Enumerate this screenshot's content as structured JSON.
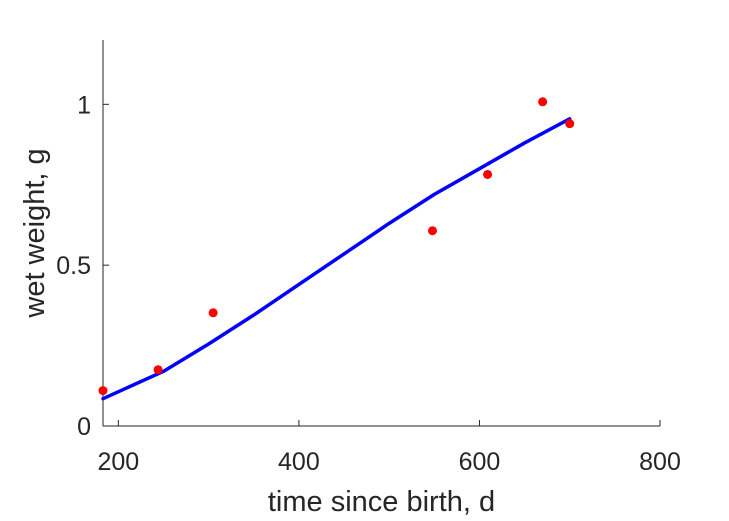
{
  "chart_data": {
    "type": "scatter",
    "title": "",
    "xlabel": "time since birth, d",
    "ylabel": "wet weight, g",
    "xlim": [
      183,
      800
    ],
    "ylim": [
      0,
      1.2
    ],
    "xticks": [
      200,
      400,
      600,
      800
    ],
    "yticks": [
      0,
      0.5,
      1
    ],
    "xtick_labels": [
      "200",
      "400",
      "600",
      "800"
    ],
    "ytick_labels": [
      "0",
      "0.5",
      "1"
    ],
    "grid": false,
    "legend": "none",
    "series": [
      {
        "kind": "scatter",
        "color": "#ff0000",
        "x": [
          183,
          244,
          305,
          548,
          609,
          670,
          700
        ],
        "y": [
          0.11,
          0.175,
          0.352,
          0.607,
          0.782,
          1.008,
          0.94
        ]
      },
      {
        "kind": "line",
        "color": "#0000ff",
        "x": [
          183,
          250,
          300,
          350,
          400,
          450,
          500,
          550,
          600,
          650,
          700
        ],
        "y": [
          0.085,
          0.17,
          0.255,
          0.345,
          0.44,
          0.535,
          0.63,
          0.72,
          0.8,
          0.88,
          0.955
        ]
      }
    ]
  }
}
